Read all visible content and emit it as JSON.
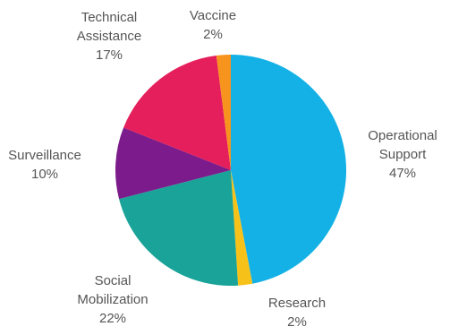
{
  "chart_data": {
    "type": "pie",
    "start_angle_deg": 0,
    "direction": "clockwise",
    "slices": [
      {
        "lines": [
          "Operational",
          "Support"
        ],
        "pct_label": "47%",
        "value": 47,
        "color": "#14b1e6"
      },
      {
        "lines": [
          "Research"
        ],
        "pct_label": "2%",
        "value": 2,
        "color": "#f6c21a"
      },
      {
        "lines": [
          "Social",
          "Mobilization"
        ],
        "pct_label": "22%",
        "value": 22,
        "color": "#1aa398"
      },
      {
        "lines": [
          "Surveillance"
        ],
        "pct_label": "10%",
        "value": 10,
        "color": "#7c1b8b"
      },
      {
        "lines": [
          "Technical",
          "Assistance"
        ],
        "pct_label": "17%",
        "value": 17,
        "color": "#e51f5b"
      },
      {
        "lines": [
          "Vaccine"
        ],
        "pct_label": "2%",
        "value": 2,
        "color": "#f7941d"
      }
    ]
  }
}
